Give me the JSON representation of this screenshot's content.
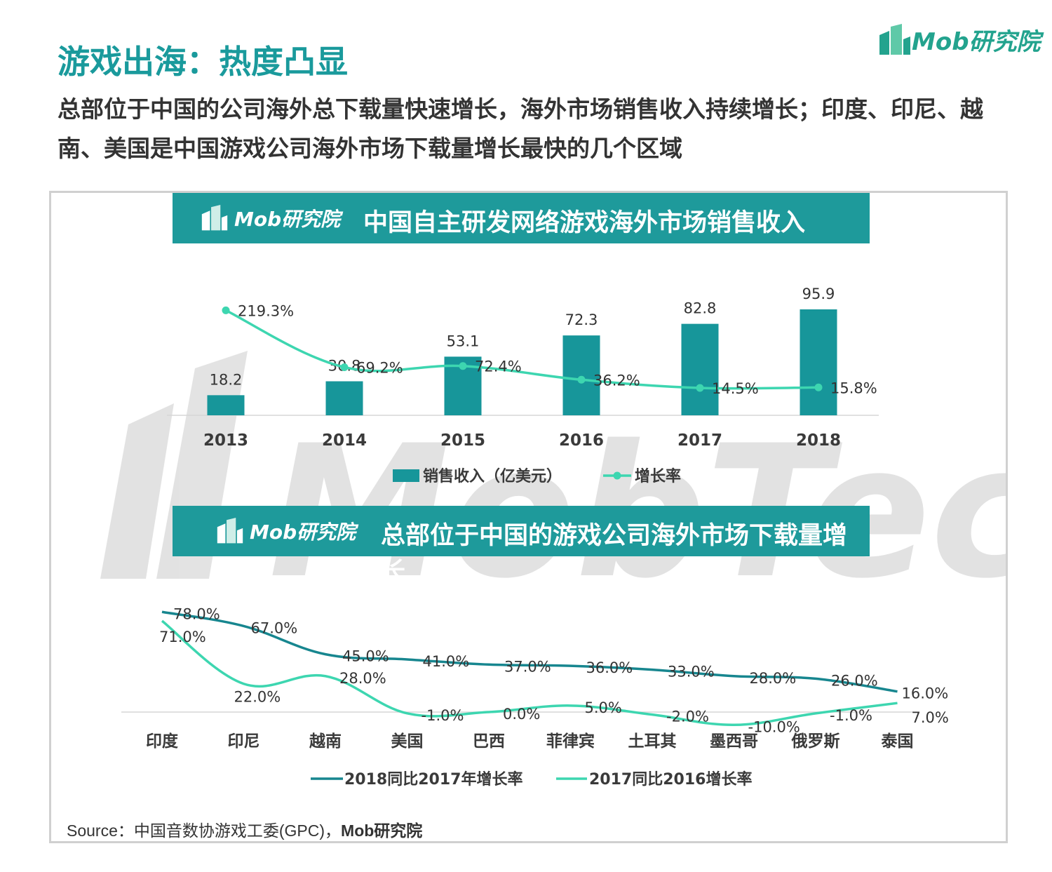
{
  "header": {
    "title": "游戏出海：热度凸显",
    "subtitle": "总部位于中国的公司海外总下载量快速增长，海外市场销售收入持续增长；印度、印尼、越南、美国是中国游戏公司海外市场下载量增长最快的几个区域"
  },
  "brand": {
    "logo_text": "Mob研究院",
    "watermark_text": "MobTech",
    "accent_color": "#1e9a9b",
    "light_color": "#3dd6b0",
    "dark_color": "#17868f"
  },
  "source": {
    "prefix": "Source：中国音数协游戏工委(GPC)，",
    "bold": "Mob研究院"
  },
  "chart_data": [
    {
      "type": "bar",
      "title": "中国自主研发网络游戏海外市场销售收入",
      "categories": [
        "2013",
        "2014",
        "2015",
        "2016",
        "2017",
        "2018"
      ],
      "series": [
        {
          "name": "销售收入（亿美元）",
          "type": "bar",
          "values": [
            18.2,
            30.8,
            53.1,
            72.3,
            82.8,
            95.9
          ],
          "labels": [
            "18.2",
            "30.8",
            "53.1",
            "72.3",
            "82.8",
            "95.9"
          ],
          "color": "#17969a"
        },
        {
          "name": "增长率",
          "type": "line",
          "values": [
            219.3,
            69.2,
            72.4,
            36.2,
            14.5,
            15.8
          ],
          "labels": [
            "219.3%",
            "69.2%",
            "72.4%",
            "36.2%",
            "14.5%",
            "15.8%"
          ],
          "color": "#3dd6b0"
        }
      ],
      "legend_placement": "bottom"
    },
    {
      "type": "line",
      "title": "总部位于中国的游戏公司海外市场下载量增长",
      "categories": [
        "印度",
        "印尼",
        "越南",
        "美国",
        "巴西",
        "菲律宾",
        "土耳其",
        "墨西哥",
        "俄罗斯",
        "泰国"
      ],
      "series": [
        {
          "name": "2018同比2017年增长率",
          "values": [
            78.0,
            67.0,
            45.0,
            41.0,
            37.0,
            36.0,
            33.0,
            28.0,
            26.0,
            16.0
          ],
          "labels": [
            "78.0%",
            "67.0%",
            "45.0%",
            "41.0%",
            "37.0%",
            "36.0%",
            "33.0%",
            "28.0%",
            "26.0%",
            "16.0%"
          ],
          "color": "#17868f"
        },
        {
          "name": "2017同比2016增长率",
          "values": [
            71.0,
            22.0,
            28.0,
            -1.0,
            0.0,
            5.0,
            -2.0,
            -10.0,
            -1.0,
            7.0
          ],
          "labels": [
            "71.0%",
            "22.0%",
            "28.0%",
            "-1.0%",
            "0.0%",
            "5.0%",
            "-2.0%",
            "-10.0%",
            "-1.0%",
            "7.0%"
          ],
          "color": "#3dd6b0"
        }
      ],
      "legend_placement": "bottom"
    }
  ]
}
